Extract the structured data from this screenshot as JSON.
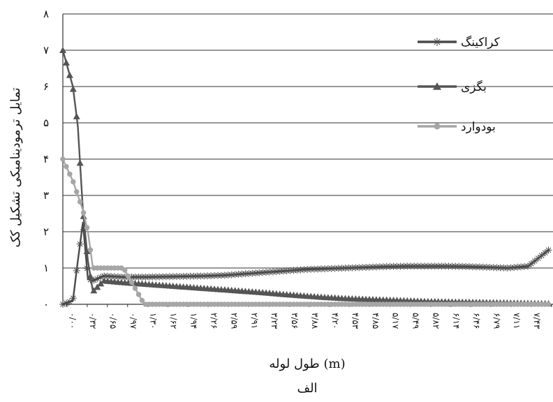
{
  "chart_data": {
    "type": "line",
    "ylabel": "تمایل ترمودینامیکی تشکیل کک",
    "xlabel": "طول لوله (m)",
    "caption": "الف",
    "ylim": [
      0,
      8
    ],
    "y_ticks": [
      "۰",
      "۱",
      "۲",
      "۳",
      "۴",
      "۵",
      "۶",
      "۷",
      "۸"
    ],
    "grid": true,
    "legend_position": "top-right",
    "x_tick_labels": [
      "۰/۰۰",
      "۰/۳۲",
      "۰/۶۵",
      "۰/۹۷",
      "۱/۳۰",
      "۱/۶۲",
      "۱/۹۴",
      "۲/۲۶",
      "۲/۵۹",
      "۲/۹۱",
      "۳/۲۳",
      "۳/۵۶",
      "۳/۸۸",
      "۴/۲۰",
      "۴/۵۳",
      "۴/۸۵",
      "۵/۱۷",
      "۵/۴۹",
      "۵/۸۲",
      "۶/۱۴",
      "۶/۴۶",
      "۶/۷۹",
      "۷/۱۱",
      "۷/۴۳",
      "۷/۷۶"
    ],
    "x": [
      0.0,
      0.16,
      0.24,
      0.32,
      0.4,
      0.48,
      0.65,
      0.97,
      1.3,
      1.62,
      1.94,
      2.26,
      2.59,
      2.91,
      3.23,
      3.56,
      3.88,
      4.2,
      4.53,
      4.85,
      5.17,
      5.49,
      5.82,
      6.14,
      6.46,
      6.79,
      7.11,
      7.43,
      7.76
    ],
    "series": [
      {
        "name": "کراکینگ",
        "color": "#4a4a4a",
        "marker": "asterisk-icon",
        "values": [
          0.0,
          0.1,
          1.2,
          2.25,
          0.7,
          0.65,
          0.78,
          0.75,
          0.75,
          0.76,
          0.77,
          0.78,
          0.8,
          0.84,
          0.88,
          0.92,
          0.96,
          0.98,
          1.0,
          1.02,
          1.04,
          1.05,
          1.05,
          1.05,
          1.04,
          1.02,
          1.0,
          1.05,
          1.5
        ]
      },
      {
        "name": "بگزی",
        "color": "#555555",
        "marker": "triangle-icon",
        "values": [
          7.0,
          6.0,
          4.9,
          2.6,
          1.2,
          0.35,
          0.65,
          0.6,
          0.56,
          0.52,
          0.48,
          0.44,
          0.4,
          0.36,
          0.32,
          0.27,
          0.23,
          0.19,
          0.16,
          0.14,
          0.12,
          0.1,
          0.08,
          0.07,
          0.06,
          0.05,
          0.04,
          0.03,
          0.02
        ]
      },
      {
        "name": "بودوارد",
        "color": "#a6a6a6",
        "marker": "circle-icon",
        "values": [
          4.0,
          3.4,
          3.0,
          2.6,
          2.0,
          1.0,
          1.0,
          1.0,
          0.0,
          0.0,
          0.0,
          0.0,
          0.0,
          0.0,
          0.0,
          0.0,
          0.0,
          0.0,
          0.0,
          0.0,
          0.0,
          0.0,
          0.0,
          0.0,
          0.0,
          0.0,
          0.0,
          0.0,
          0.0
        ]
      }
    ]
  }
}
